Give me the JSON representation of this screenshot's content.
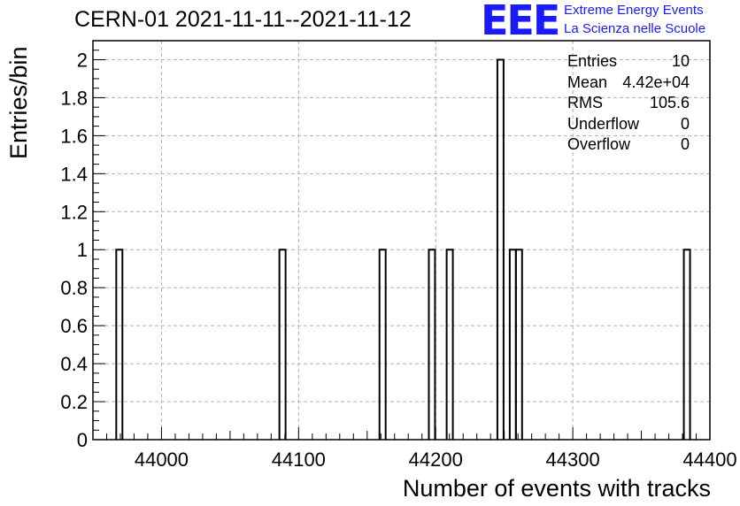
{
  "header": {
    "title": "CERN-01 2021-11-11--2021-11-12",
    "logo_mark": "EEE",
    "logo_line1": "Extreme Energy Events",
    "logo_line2": "La Scienza nelle Scuole"
  },
  "colors": {
    "logo": "#1a1aff",
    "bars": "#000000",
    "grid": "#b0b0b0"
  },
  "stats": [
    {
      "label": "Entries",
      "value": "10"
    },
    {
      "label": "Mean",
      "value": "4.42e+04"
    },
    {
      "label": "RMS",
      "value": "105.6"
    },
    {
      "label": "Underflow",
      "value": "0"
    },
    {
      "label": "Overflow",
      "value": "0"
    }
  ],
  "chart_data": {
    "type": "bar",
    "title": "CERN-01 2021-11-11--2021-11-12",
    "xlabel": "Number of events with tracks",
    "ylabel": "Entries/bin",
    "xlim": [
      43950,
      44400
    ],
    "ylim": [
      0,
      2.1
    ],
    "bin_width": 4.5,
    "grid": true,
    "x_ticks": [
      44000,
      44100,
      44200,
      44300,
      44400
    ],
    "y_ticks": [
      0,
      0.2,
      0.4,
      0.6,
      0.8,
      1,
      1.2,
      1.4,
      1.6,
      1.8,
      2
    ],
    "y_tick_labels": [
      "0",
      "0.2",
      "0.4",
      "0.6",
      "0.8",
      "1",
      "1.2",
      "1.4",
      "1.6",
      "1.8",
      "2"
    ],
    "bins": [
      {
        "x": 43967,
        "count": 1
      },
      {
        "x": 44086,
        "count": 1
      },
      {
        "x": 44159,
        "count": 1
      },
      {
        "x": 44195,
        "count": 1
      },
      {
        "x": 44208,
        "count": 1
      },
      {
        "x": 44245,
        "count": 2
      },
      {
        "x": 44254,
        "count": 1
      },
      {
        "x": 44258.5,
        "count": 1
      },
      {
        "x": 44381,
        "count": 1
      }
    ]
  }
}
